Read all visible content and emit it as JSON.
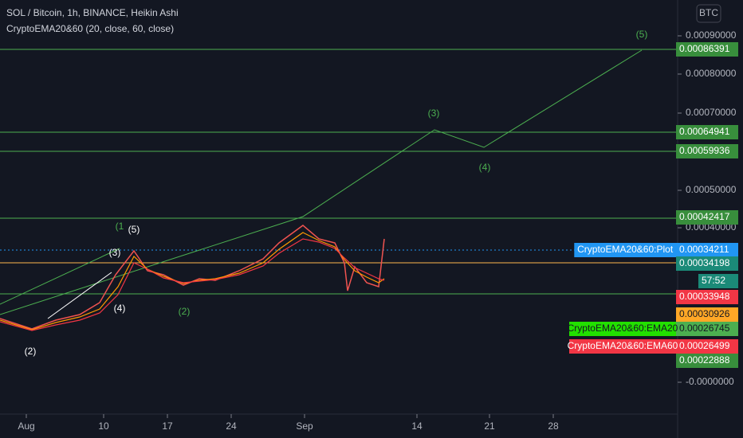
{
  "header": {
    "title": "SOL / Bitcoin, 1h, BINANCE, Heikin Ashi",
    "indicator": "CryptoEMA20&60 (20, close, 60, close)",
    "currency": "BTC"
  },
  "price_axis": {
    "ticks": [
      "0.00090000",
      "0.00080000",
      "0.00070000",
      "0.00050000",
      "0.00040000",
      "-0.0000000"
    ]
  },
  "time_axis": {
    "ticks": [
      "Aug",
      "10",
      "17",
      "24",
      "Sep",
      "14",
      "21",
      "28"
    ]
  },
  "price_tags": [
    {
      "price": "0.00086391"
    },
    {
      "price": "0.00064941"
    },
    {
      "price": "0.00059936"
    },
    {
      "price": "0.00042417"
    },
    {
      "name": "CryptoEMA20&60:Plot",
      "price": "0.00034211"
    },
    {
      "price": "0.00034198"
    },
    {
      "price": "57:52"
    },
    {
      "price": "0.00033948"
    },
    {
      "price": "0.00030926"
    },
    {
      "name": "CryptoEMA20&60:EMA20",
      "price": "0.00026745"
    },
    {
      "name": "CryptoEMA20&60:EMA60",
      "price": "0.00026499"
    },
    {
      "price": "0.00022888"
    }
  ],
  "wave_labels": {
    "green": [
      "(5)",
      "(3)",
      "(4)",
      "(2)",
      "(1"
    ],
    "white": [
      "(5)",
      "(3)",
      "(4)",
      "(2)"
    ]
  }
}
